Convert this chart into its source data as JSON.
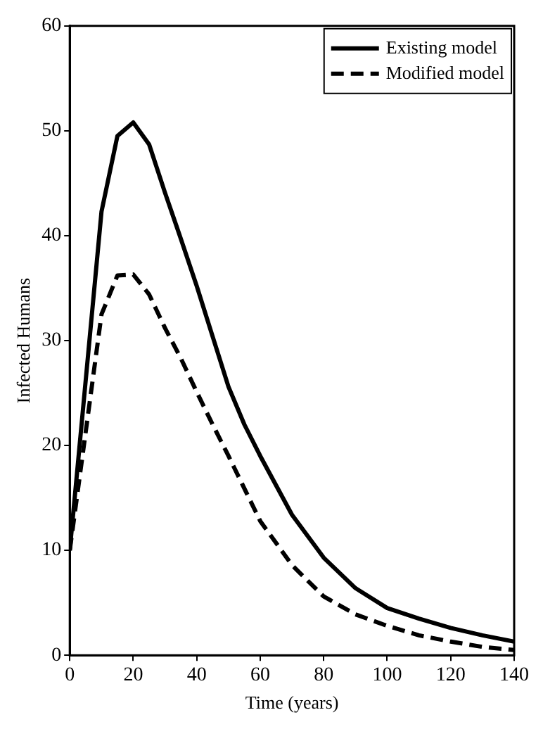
{
  "chart_data": {
    "type": "line",
    "xlabel": "Time (years)",
    "ylabel": "Infected Humans",
    "xlim": [
      0,
      140
    ],
    "xticks": [
      0,
      20,
      40,
      60,
      80,
      100,
      120,
      140
    ],
    "ylim": [
      0,
      60
    ],
    "yticks": [
      0,
      10,
      20,
      30,
      40,
      50,
      60
    ],
    "grid": false,
    "legend": "top right",
    "marker": "none",
    "series": [
      {
        "name": "Existing model",
        "color": "#000000",
        "line_style": "solid",
        "x": [
          0,
          10,
          15,
          20,
          25,
          30,
          35,
          40,
          45,
          50,
          55,
          60,
          70,
          80,
          90,
          100,
          110,
          120,
          130,
          140
        ],
        "values": [
          10,
          42.3,
          49.5,
          50.8,
          48.7,
          44.1,
          39.7,
          35.2,
          30.4,
          25.6,
          22,
          19,
          13.4,
          9.3,
          6.4,
          4.5,
          3.5,
          2.6,
          1.9,
          1.3
        ]
      },
      {
        "name": "Modified model",
        "color": "#000000",
        "line_style": "dashed",
        "x": [
          0,
          10,
          15,
          20,
          25,
          30,
          35,
          40,
          45,
          50,
          60,
          70,
          80,
          90,
          100,
          110,
          120,
          130,
          140
        ],
        "values": [
          10,
          32.5,
          36.2,
          36.3,
          34.4,
          31.2,
          28.3,
          25.1,
          22,
          19,
          12.8,
          8.6,
          5.6,
          3.9,
          2.8,
          1.9,
          1.3,
          0.8,
          0.5
        ]
      }
    ]
  }
}
